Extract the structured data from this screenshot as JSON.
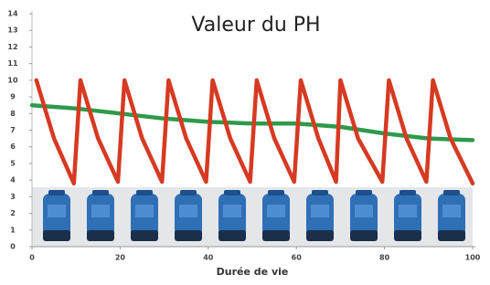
{
  "chart_data": {
    "type": "line",
    "title": "Valeur du PH",
    "x_label": "Durée de vie",
    "xlim": [
      0,
      100
    ],
    "xticks": [
      0,
      20,
      40,
      60,
      80,
      100
    ],
    "ylim": [
      0,
      14
    ],
    "yticks": [
      0,
      1,
      2,
      3,
      4,
      5,
      6,
      7,
      8,
      9,
      10,
      11,
      12,
      13,
      14
    ],
    "grid": false,
    "series": [
      {
        "color": "#d63a22",
        "x": [
          1,
          5,
          9.5,
          11,
          15,
          19.5,
          21,
          25,
          29.5,
          31,
          35,
          39.5,
          41,
          45,
          49.5,
          51,
          55,
          59.5,
          61,
          65,
          69,
          70,
          74,
          79.5,
          81,
          85,
          89.5,
          91,
          95,
          100
        ],
        "values": [
          10,
          6.5,
          3.8,
          10,
          6.5,
          3.9,
          10,
          6.5,
          3.9,
          10,
          6.5,
          3.9,
          10,
          6.5,
          3.9,
          10,
          6.5,
          3.9,
          10,
          6.5,
          3.9,
          10,
          6.5,
          3.9,
          10,
          6.5,
          3.9,
          10,
          6.5,
          3.8
        ]
      },
      {
        "color": "#2e9a4a",
        "x": [
          0,
          10,
          20,
          30,
          40,
          50,
          60,
          70,
          80,
          90,
          100
        ],
        "values": [
          8.5,
          8.3,
          8.0,
          7.7,
          7.5,
          7.4,
          7.4,
          7.2,
          6.8,
          6.5,
          6.4
        ]
      }
    ]
  }
}
